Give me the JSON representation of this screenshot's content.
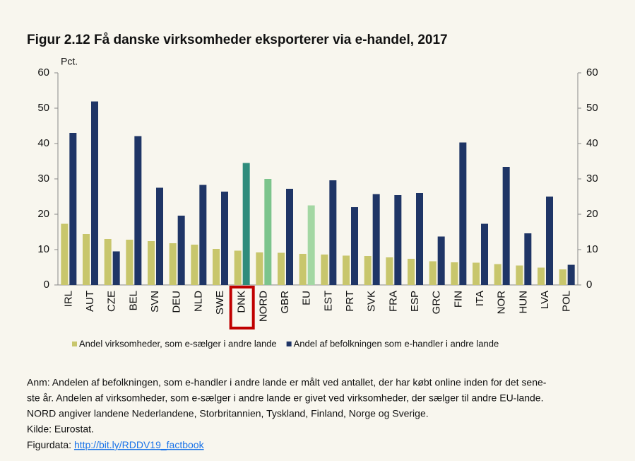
{
  "chart_data": {
    "type": "bar",
    "title": "Figur 2.12 Få danske virksomheder eksporterer via e-handel, 2017",
    "y_label": "Pct.",
    "categories": [
      "IRL",
      "AUT",
      "CZE",
      "BEL",
      "SVN",
      "DEU",
      "NLD",
      "SWE",
      "DNK",
      "NORD",
      "GBR",
      "EU",
      "EST",
      "PRT",
      "SVK",
      "FRA",
      "ESP",
      "GRC",
      "FIN",
      "ITA",
      "NOR",
      "HUN",
      "LVA",
      "POL"
    ],
    "series": [
      {
        "name": "Andel virksomheder, som e-sælger i andre lande",
        "color": "#c8c66c",
        "values": [
          17.3,
          14.4,
          13,
          12.8,
          12.4,
          11.8,
          11.4,
          10.2,
          9.7,
          9.2,
          9.1,
          8.8,
          8.6,
          8.3,
          8.2,
          7.8,
          7.4,
          6.7,
          6.4,
          6.3,
          5.9,
          5.5,
          4.9,
          4.4
        ]
      },
      {
        "name": "Andel af befolkningen som e-handler i andre lande",
        "color": "#1f3566",
        "point_colors": {
          "8": "#2f8c7c",
          "9": "#7cc48c",
          "11": "#a3d7a3"
        },
        "values": [
          43,
          51.9,
          9.5,
          42.1,
          27.5,
          19.6,
          28.3,
          26.4,
          34.5,
          30,
          27.2,
          22.5,
          29.6,
          22,
          25.7,
          25.4,
          26,
          13.7,
          40.3,
          17.3,
          33.4,
          14.6,
          25,
          5.7
        ]
      }
    ],
    "highlight_index": 8,
    "ylim": [
      0,
      60
    ],
    "yticks": [
      0,
      10,
      20,
      30,
      40,
      50,
      60
    ],
    "y2lim": [
      0,
      60
    ],
    "y2ticks": [
      0,
      10,
      20,
      30,
      40,
      50,
      60
    ],
    "legend": "bottom"
  },
  "notes": [
    "Anm: Andelen af befolkningen, som e-handler i andre lande er målt ved antallet, der har købt online inden for det sene-",
    "ste år. Andelen af virksomheder, som e-sælger i andre lande er givet ved virksomheder, der sælger til andre EU-lande.",
    "NORD angiver landene Nederlandene, Storbritannien, Tyskland, Finland, Norge og Sverige.",
    "Kilde: Eurostat."
  ],
  "source_prefix": "Figurdata: ",
  "source_link": "http://bit.ly/RDDV19_factbook"
}
